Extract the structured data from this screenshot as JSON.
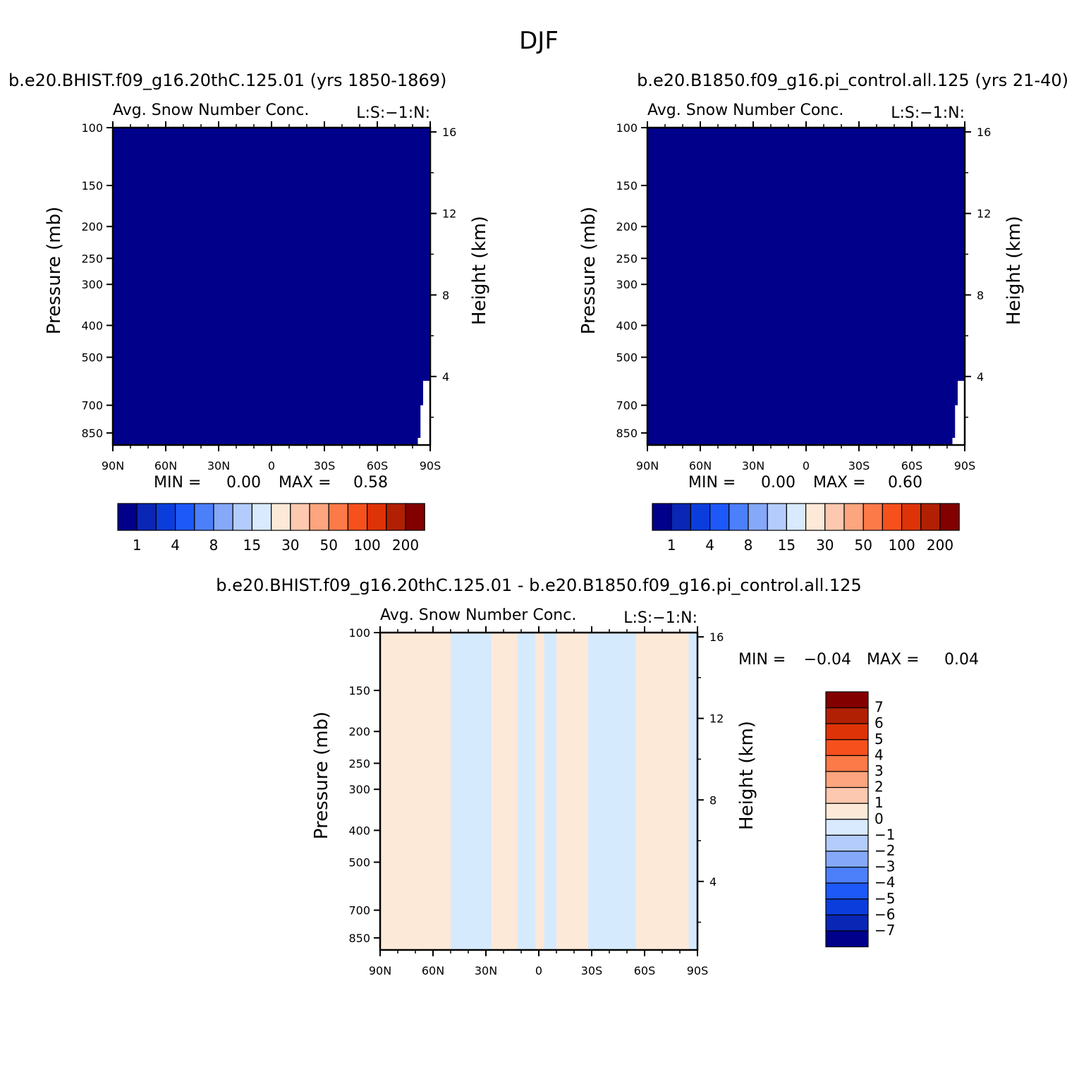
{
  "figure_title": "DJF",
  "chart_data": [
    {
      "type": "heatmap",
      "panel": "case",
      "header": "b.e20.BHIST.f09_g16.20thC.125.01 (yrs 1850-1869)",
      "title": "Avg. Snow Number Conc.",
      "title_right": "L:S:-1:N:",
      "xlabel": "",
      "ylabel": "Pressure (mb)",
      "ylabel_right": "Height (km)",
      "x_ticks": [
        "90N",
        "60N",
        "30N",
        "0",
        "30S",
        "60S",
        "90S"
      ],
      "x_range": [
        90,
        -90
      ],
      "y_ticks": [
        100,
        150,
        200,
        250,
        300,
        400,
        500,
        700,
        850
      ],
      "y_range": [
        100,
        925
      ],
      "y_scale": "log",
      "right_ticks": [
        16,
        12,
        8,
        4
      ],
      "min_label": "MIN =",
      "min_value": "0.00",
      "max_label": "MAX =",
      "max_value": "0.58",
      "fill_color": "#00008b",
      "missing_region_lat_start": -83,
      "colorbar_labels": [
        "1",
        "4",
        "8",
        "15",
        "30",
        "50",
        "100",
        "200"
      ]
    },
    {
      "type": "heatmap",
      "panel": "control",
      "header": "b.e20.B1850.f09_g16.pi_control.all.125 (yrs 21-40)",
      "title": "Avg. Snow Number Conc.",
      "title_right": "L:S:-1:N:",
      "xlabel": "",
      "ylabel": "Pressure (mb)",
      "ylabel_right": "Height (km)",
      "x_ticks": [
        "90N",
        "60N",
        "30N",
        "0",
        "30S",
        "60S",
        "90S"
      ],
      "x_range": [
        90,
        -90
      ],
      "y_ticks": [
        100,
        150,
        200,
        250,
        300,
        400,
        500,
        700,
        850
      ],
      "y_range": [
        100,
        925
      ],
      "y_scale": "log",
      "right_ticks": [
        16,
        12,
        8,
        4
      ],
      "min_label": "MIN =",
      "min_value": "0.00",
      "max_label": "MAX =",
      "max_value": "0.60",
      "fill_color": "#00008b",
      "missing_region_lat_start": -83,
      "colorbar_labels": [
        "1",
        "4",
        "8",
        "15",
        "30",
        "50",
        "100",
        "200"
      ]
    },
    {
      "type": "heatmap",
      "panel": "difference",
      "header": "b.e20.BHIST.f09_g16.20thC.125.01 - b.e20.B1850.f09_g16.pi_control.all.125",
      "title": "Avg. Snow Number Conc.",
      "title_right": "L:S:-1:N:",
      "xlabel": "",
      "ylabel": "Pressure (mb)",
      "ylabel_right": "Height (km)",
      "x_ticks": [
        "90N",
        "60N",
        "30N",
        "0",
        "30S",
        "60S",
        "90S"
      ],
      "x_range": [
        90,
        -90
      ],
      "y_ticks": [
        100,
        150,
        200,
        250,
        300,
        400,
        500,
        700,
        850
      ],
      "y_range": [
        100,
        925
      ],
      "y_scale": "log",
      "right_ticks": [
        16,
        12,
        8,
        4
      ],
      "min_label": "MIN =",
      "min_value": "-0.04",
      "max_label": "MAX =",
      "max_value": "0.04",
      "background_color": "#fde9d8",
      "negative_color": "#d6eafe",
      "negative_bands_lat": [
        [
          50,
          27
        ],
        [
          12,
          2
        ],
        [
          -3,
          -10
        ],
        [
          -28,
          -55
        ],
        [
          -85,
          -90
        ]
      ],
      "colorbar_labels": [
        "7",
        "6",
        "5",
        "4",
        "3",
        "2",
        "1",
        "0",
        "-1",
        "-2",
        "-3",
        "-4",
        "-5",
        "-6",
        "-7"
      ]
    }
  ],
  "colorbar_colors_16": [
    "#00008b",
    "#0a26b5",
    "#0b3ddc",
    "#1d58f8",
    "#4c7ffa",
    "#85a8f8",
    "#b3ccfb",
    "#d9eafe",
    "#fde9d8",
    "#fdc8b0",
    "#fca57e",
    "#fb7a48",
    "#f6511d",
    "#de3306",
    "#b12003",
    "#830000"
  ]
}
